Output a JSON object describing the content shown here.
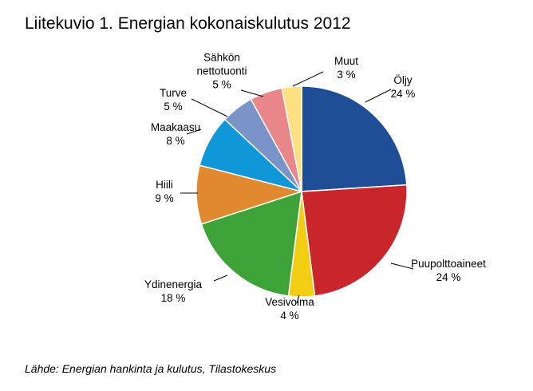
{
  "chart_data": {
    "type": "pie",
    "title": "Liitekuvio 1. Energian kokonaiskulutus 2012",
    "slices": [
      {
        "label": "Öljy",
        "value": 24,
        "value_label": "24 %",
        "color": "#1f4e96"
      },
      {
        "label": "Puupolttoaineet",
        "value": 24,
        "value_label": "24 %",
        "color": "#c9262c"
      },
      {
        "label": "Vesivoima",
        "value": 4,
        "value_label": "4 %",
        "color": "#f3cc14"
      },
      {
        "label": "Ydinenergia",
        "value": 18,
        "value_label": "18 %",
        "color": "#3da238"
      },
      {
        "label": "Hiili",
        "value": 9,
        "value_label": "9 %",
        "color": "#e0892e"
      },
      {
        "label": "Maakaasu",
        "value": 8,
        "value_label": "8 %",
        "color": "#0f97d8"
      },
      {
        "label": "Turve",
        "value": 5,
        "value_label": "5 %",
        "color": "#7a93c8"
      },
      {
        "label": "Sähkön nettotuonti",
        "value": 5,
        "value_label": "5 %",
        "color": "#e8868a"
      },
      {
        "label": "Muut",
        "value": 3,
        "value_label": "3 %",
        "color": "#ffe080"
      }
    ]
  },
  "source": "Lähde: Energian hankinta ja kulutus, Tilastokeskus"
}
